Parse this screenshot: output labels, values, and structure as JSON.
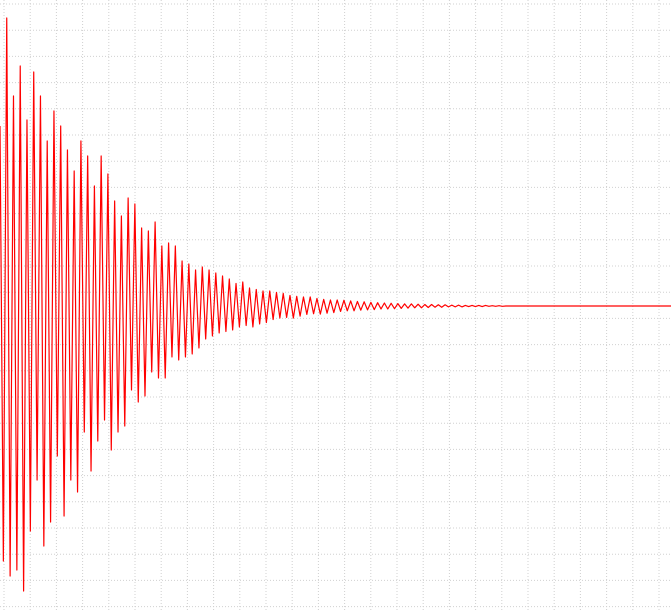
{
  "chart_data": {
    "type": "line",
    "ylim": [
      -1.02,
      1.02
    ],
    "xlim": [
      0,
      199
    ],
    "grid": true,
    "series": [
      {
        "color": "#ff0000",
        "values": [
          0.6,
          -0.85,
          0.96,
          -0.9,
          0.7,
          -0.88,
          0.8,
          -0.95,
          0.62,
          -0.75,
          0.78,
          -0.58,
          0.7,
          -0.8,
          0.55,
          -0.72,
          0.65,
          -0.5,
          0.6,
          -0.7,
          0.52,
          -0.58,
          0.45,
          -0.62,
          0.55,
          -0.42,
          0.5,
          -0.55,
          0.4,
          -0.45,
          0.5,
          -0.38,
          0.44,
          -0.48,
          0.35,
          -0.42,
          0.3,
          -0.4,
          0.36,
          -0.28,
          0.34,
          -0.32,
          0.26,
          -0.3,
          0.25,
          -0.22,
          0.28,
          -0.24,
          0.2,
          -0.24,
          0.21,
          -0.17,
          0.2,
          -0.18,
          0.15,
          -0.17,
          0.14,
          -0.16,
          0.12,
          -0.14,
          0.13,
          -0.11,
          0.12,
          -0.1,
          0.11,
          -0.09,
          0.1,
          -0.085,
          0.09,
          -0.08,
          0.075,
          -0.07,
          0.08,
          -0.065,
          0.06,
          -0.07,
          0.055,
          -0.06,
          0.05,
          -0.055,
          0.05,
          -0.045,
          0.045,
          -0.04,
          0.042,
          -0.038,
          0.035,
          -0.04,
          0.032,
          -0.034,
          0.03,
          -0.028,
          0.03,
          -0.026,
          0.025,
          -0.027,
          0.022,
          -0.024,
          0.02,
          -0.022,
          0.02,
          -0.018,
          0.019,
          -0.016,
          0.017,
          -0.016,
          0.015,
          -0.014,
          0.014,
          -0.013,
          0.012,
          -0.012,
          0.011,
          -0.01,
          0.01,
          -0.01,
          0.009,
          -0.009,
          0.008,
          -0.008,
          0.007,
          -0.007,
          0.007,
          -0.006,
          0.006,
          -0.006,
          0.005,
          -0.005,
          0.005,
          -0.004,
          0.004,
          -0.004,
          0.004,
          -0.003,
          0.003,
          -0.003,
          0.003,
          -0.003,
          0.002,
          -0.002,
          0.002,
          -0.002,
          0.002,
          -0.002,
          0.002,
          -0.001,
          0.001,
          -0.001,
          0.001,
          -0.001,
          0,
          0,
          0,
          0,
          0,
          0,
          0,
          0,
          0,
          0,
          0,
          0,
          0,
          0,
          0,
          0,
          0,
          0,
          0,
          0,
          0,
          0,
          0,
          0,
          0,
          0,
          0,
          0,
          0,
          0,
          0,
          0,
          0,
          0,
          0,
          0,
          0,
          0,
          0,
          0,
          0,
          0,
          0,
          0,
          0,
          0,
          0,
          0,
          0,
          0
        ]
      }
    ]
  }
}
